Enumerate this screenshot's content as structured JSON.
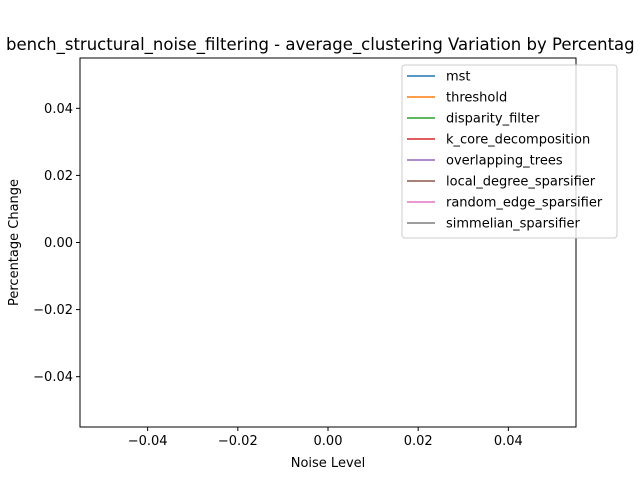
{
  "chart_data": {
    "type": "line",
    "title": "bench_structural_noise_filtering - average_clustering Variation by Percentag",
    "xlabel": "Noise Level",
    "ylabel": "Percentage Change",
    "xlim": [
      -0.055,
      0.055
    ],
    "ylim": [
      -0.055,
      0.055
    ],
    "xticks": [
      -0.04,
      -0.02,
      0.0,
      0.02,
      0.04
    ],
    "xtick_labels": [
      "−0.04",
      "−0.02",
      "0.00",
      "0.02",
      "0.04"
    ],
    "yticks": [
      -0.04,
      -0.02,
      0.0,
      0.02,
      0.04
    ],
    "ytick_labels": [
      "−0.04",
      "−0.02",
      "0.00",
      "0.02",
      "0.04"
    ],
    "grid": false,
    "legend_position": "top-right",
    "series": [
      {
        "name": "mst",
        "color": "#1f77b4",
        "x": [],
        "y": []
      },
      {
        "name": "threshold",
        "color": "#ff7f0e",
        "x": [],
        "y": []
      },
      {
        "name": "disparity_filter",
        "color": "#2ca02c",
        "x": [],
        "y": []
      },
      {
        "name": "k_core_decomposition",
        "color": "#d62728",
        "x": [],
        "y": []
      },
      {
        "name": "overlapping_trees",
        "color": "#9467bd",
        "x": [],
        "y": []
      },
      {
        "name": "local_degree_sparsifier",
        "color": "#8c564b",
        "x": [],
        "y": []
      },
      {
        "name": "random_edge_sparsifier",
        "color": "#e377c2",
        "x": [],
        "y": []
      },
      {
        "name": "simmelian_sparsifier",
        "color": "#7f7f7f",
        "x": [],
        "y": []
      }
    ]
  }
}
